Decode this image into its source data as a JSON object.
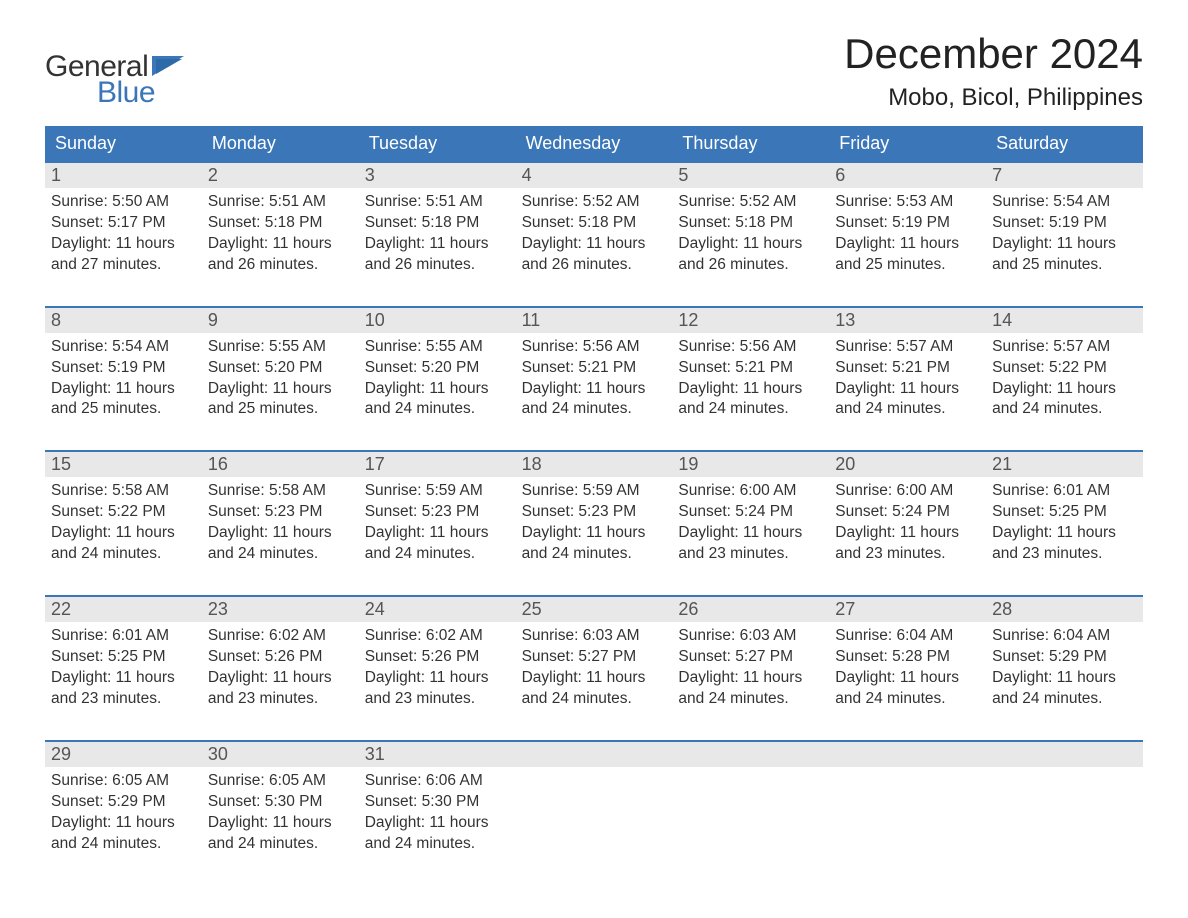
{
  "branding": {
    "logo_word1": "General",
    "logo_word2": "Blue",
    "logo_word1_color": "#333333",
    "logo_word2_color": "#3a76b8",
    "flag_color": "#3a76b8"
  },
  "header": {
    "month_title": "December 2024",
    "location": "Mobo, Bicol, Philippines"
  },
  "colors": {
    "header_bg": "#3a76b8",
    "header_text": "#ffffff",
    "week_border": "#3a76b8",
    "daynum_bg": "#e8e8e8",
    "body_text": "#333333",
    "page_bg": "#ffffff"
  },
  "typography": {
    "month_title_fontsize": 42,
    "location_fontsize": 24,
    "day_header_fontsize": 18,
    "daynum_fontsize": 18,
    "cell_body_fontsize": 15.5
  },
  "calendar": {
    "day_names": [
      "Sunday",
      "Monday",
      "Tuesday",
      "Wednesday",
      "Thursday",
      "Friday",
      "Saturday"
    ],
    "weeks": [
      [
        {
          "n": "1",
          "sr": "Sunrise: 5:50 AM",
          "ss": "Sunset: 5:17 PM",
          "d1": "Daylight: 11 hours",
          "d2": "and 27 minutes."
        },
        {
          "n": "2",
          "sr": "Sunrise: 5:51 AM",
          "ss": "Sunset: 5:18 PM",
          "d1": "Daylight: 11 hours",
          "d2": "and 26 minutes."
        },
        {
          "n": "3",
          "sr": "Sunrise: 5:51 AM",
          "ss": "Sunset: 5:18 PM",
          "d1": "Daylight: 11 hours",
          "d2": "and 26 minutes."
        },
        {
          "n": "4",
          "sr": "Sunrise: 5:52 AM",
          "ss": "Sunset: 5:18 PM",
          "d1": "Daylight: 11 hours",
          "d2": "and 26 minutes."
        },
        {
          "n": "5",
          "sr": "Sunrise: 5:52 AM",
          "ss": "Sunset: 5:18 PM",
          "d1": "Daylight: 11 hours",
          "d2": "and 26 minutes."
        },
        {
          "n": "6",
          "sr": "Sunrise: 5:53 AM",
          "ss": "Sunset: 5:19 PM",
          "d1": "Daylight: 11 hours",
          "d2": "and 25 minutes."
        },
        {
          "n": "7",
          "sr": "Sunrise: 5:54 AM",
          "ss": "Sunset: 5:19 PM",
          "d1": "Daylight: 11 hours",
          "d2": "and 25 minutes."
        }
      ],
      [
        {
          "n": "8",
          "sr": "Sunrise: 5:54 AM",
          "ss": "Sunset: 5:19 PM",
          "d1": "Daylight: 11 hours",
          "d2": "and 25 minutes."
        },
        {
          "n": "9",
          "sr": "Sunrise: 5:55 AM",
          "ss": "Sunset: 5:20 PM",
          "d1": "Daylight: 11 hours",
          "d2": "and 25 minutes."
        },
        {
          "n": "10",
          "sr": "Sunrise: 5:55 AM",
          "ss": "Sunset: 5:20 PM",
          "d1": "Daylight: 11 hours",
          "d2": "and 24 minutes."
        },
        {
          "n": "11",
          "sr": "Sunrise: 5:56 AM",
          "ss": "Sunset: 5:21 PM",
          "d1": "Daylight: 11 hours",
          "d2": "and 24 minutes."
        },
        {
          "n": "12",
          "sr": "Sunrise: 5:56 AM",
          "ss": "Sunset: 5:21 PM",
          "d1": "Daylight: 11 hours",
          "d2": "and 24 minutes."
        },
        {
          "n": "13",
          "sr": "Sunrise: 5:57 AM",
          "ss": "Sunset: 5:21 PM",
          "d1": "Daylight: 11 hours",
          "d2": "and 24 minutes."
        },
        {
          "n": "14",
          "sr": "Sunrise: 5:57 AM",
          "ss": "Sunset: 5:22 PM",
          "d1": "Daylight: 11 hours",
          "d2": "and 24 minutes."
        }
      ],
      [
        {
          "n": "15",
          "sr": "Sunrise: 5:58 AM",
          "ss": "Sunset: 5:22 PM",
          "d1": "Daylight: 11 hours",
          "d2": "and 24 minutes."
        },
        {
          "n": "16",
          "sr": "Sunrise: 5:58 AM",
          "ss": "Sunset: 5:23 PM",
          "d1": "Daylight: 11 hours",
          "d2": "and 24 minutes."
        },
        {
          "n": "17",
          "sr": "Sunrise: 5:59 AM",
          "ss": "Sunset: 5:23 PM",
          "d1": "Daylight: 11 hours",
          "d2": "and 24 minutes."
        },
        {
          "n": "18",
          "sr": "Sunrise: 5:59 AM",
          "ss": "Sunset: 5:23 PM",
          "d1": "Daylight: 11 hours",
          "d2": "and 24 minutes."
        },
        {
          "n": "19",
          "sr": "Sunrise: 6:00 AM",
          "ss": "Sunset: 5:24 PM",
          "d1": "Daylight: 11 hours",
          "d2": "and 23 minutes."
        },
        {
          "n": "20",
          "sr": "Sunrise: 6:00 AM",
          "ss": "Sunset: 5:24 PM",
          "d1": "Daylight: 11 hours",
          "d2": "and 23 minutes."
        },
        {
          "n": "21",
          "sr": "Sunrise: 6:01 AM",
          "ss": "Sunset: 5:25 PM",
          "d1": "Daylight: 11 hours",
          "d2": "and 23 minutes."
        }
      ],
      [
        {
          "n": "22",
          "sr": "Sunrise: 6:01 AM",
          "ss": "Sunset: 5:25 PM",
          "d1": "Daylight: 11 hours",
          "d2": "and 23 minutes."
        },
        {
          "n": "23",
          "sr": "Sunrise: 6:02 AM",
          "ss": "Sunset: 5:26 PM",
          "d1": "Daylight: 11 hours",
          "d2": "and 23 minutes."
        },
        {
          "n": "24",
          "sr": "Sunrise: 6:02 AM",
          "ss": "Sunset: 5:26 PM",
          "d1": "Daylight: 11 hours",
          "d2": "and 23 minutes."
        },
        {
          "n": "25",
          "sr": "Sunrise: 6:03 AM",
          "ss": "Sunset: 5:27 PM",
          "d1": "Daylight: 11 hours",
          "d2": "and 24 minutes."
        },
        {
          "n": "26",
          "sr": "Sunrise: 6:03 AM",
          "ss": "Sunset: 5:27 PM",
          "d1": "Daylight: 11 hours",
          "d2": "and 24 minutes."
        },
        {
          "n": "27",
          "sr": "Sunrise: 6:04 AM",
          "ss": "Sunset: 5:28 PM",
          "d1": "Daylight: 11 hours",
          "d2": "and 24 minutes."
        },
        {
          "n": "28",
          "sr": "Sunrise: 6:04 AM",
          "ss": "Sunset: 5:29 PM",
          "d1": "Daylight: 11 hours",
          "d2": "and 24 minutes."
        }
      ],
      [
        {
          "n": "29",
          "sr": "Sunrise: 6:05 AM",
          "ss": "Sunset: 5:29 PM",
          "d1": "Daylight: 11 hours",
          "d2": "and 24 minutes."
        },
        {
          "n": "30",
          "sr": "Sunrise: 6:05 AM",
          "ss": "Sunset: 5:30 PM",
          "d1": "Daylight: 11 hours",
          "d2": "and 24 minutes."
        },
        {
          "n": "31",
          "sr": "Sunrise: 6:06 AM",
          "ss": "Sunset: 5:30 PM",
          "d1": "Daylight: 11 hours",
          "d2": "and 24 minutes."
        },
        null,
        null,
        null,
        null
      ]
    ]
  }
}
